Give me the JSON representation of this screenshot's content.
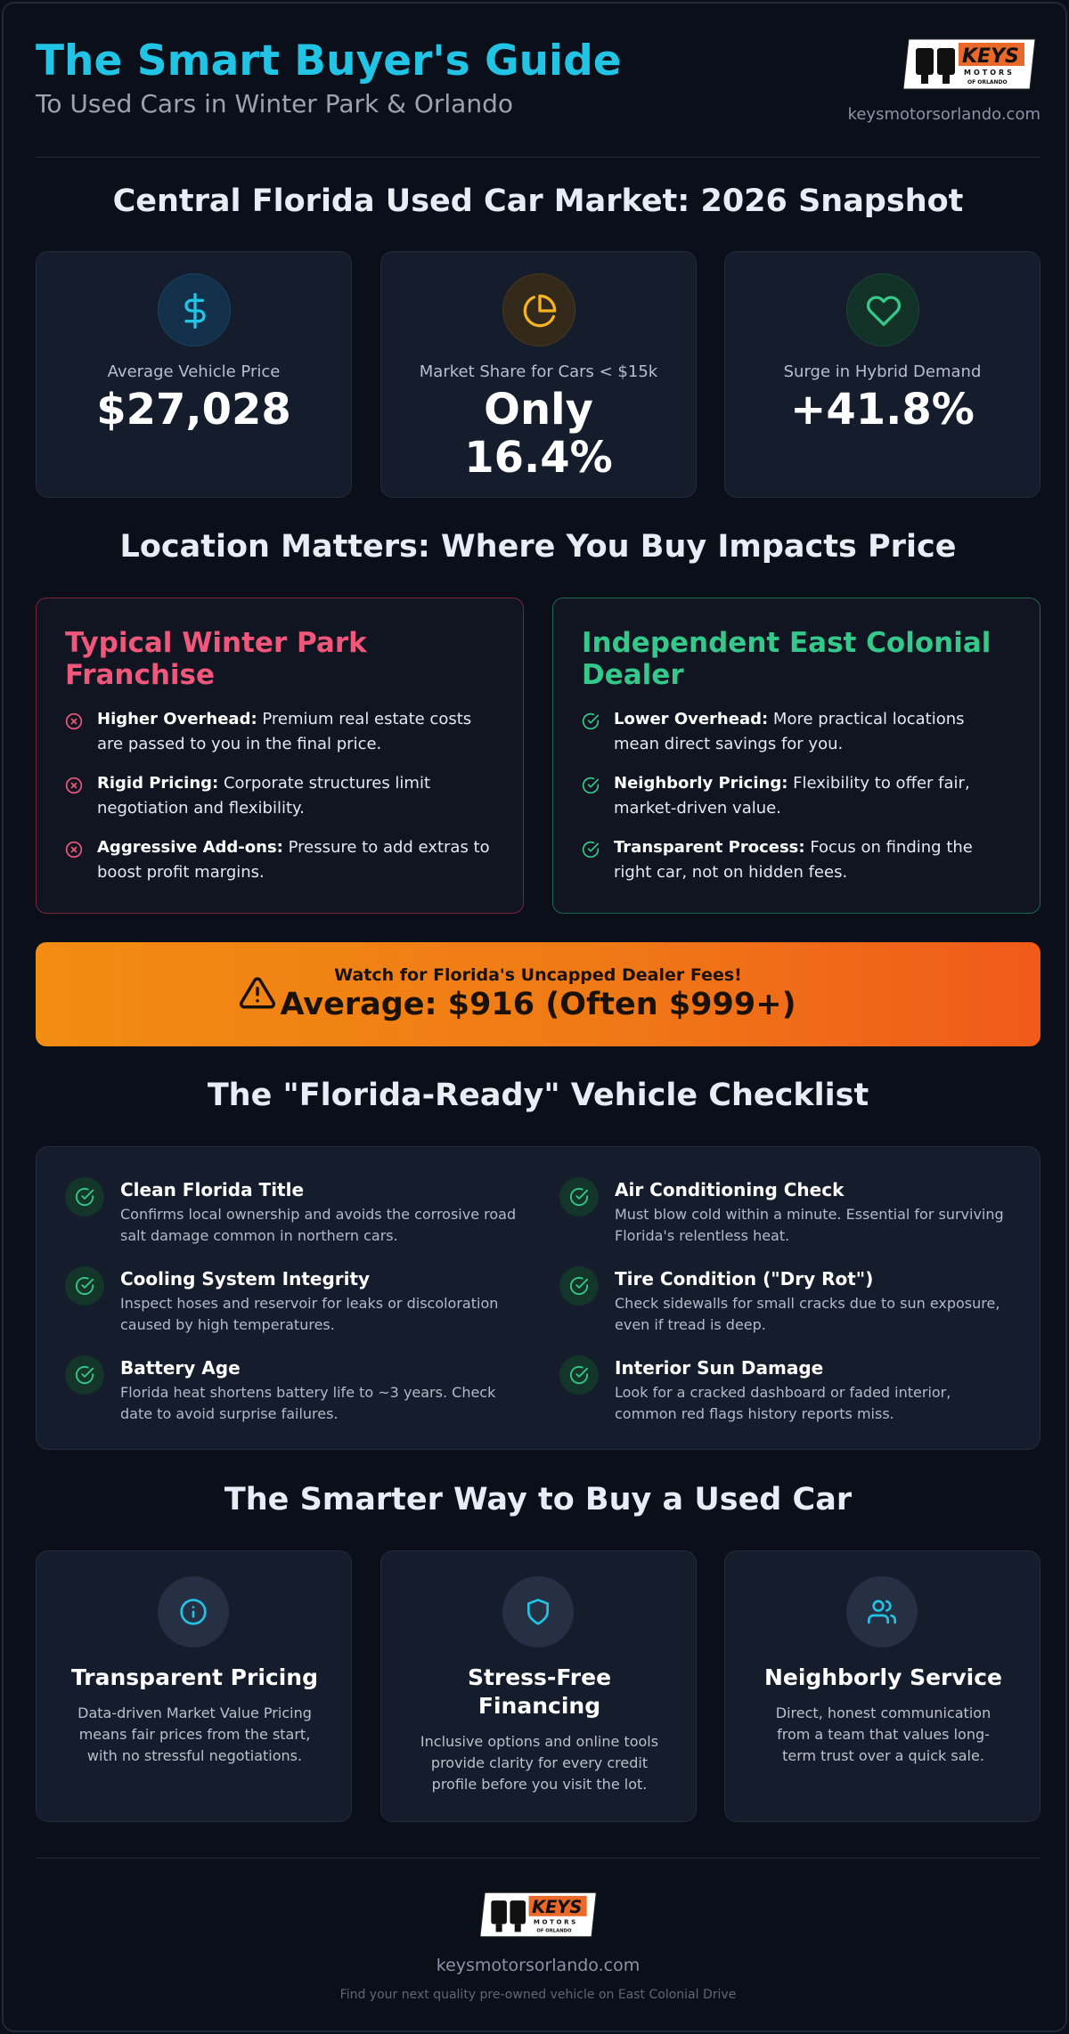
{
  "header": {
    "title": "The Smart Buyer's Guide",
    "subtitle": "To Used Cars in Winter Park & Orlando",
    "url": "keysmotorsorlando.com",
    "logo_text": "KEYS",
    "logo_subtext": "MOTORS",
    "logo_tagline": "OF ORLANDO"
  },
  "market": {
    "title": "Central Florida Used Car Market: 2026 Snapshot",
    "stats": [
      {
        "icon": "dollar-icon",
        "label": "Average Vehicle Price",
        "value": "$27,028",
        "value_line2": ""
      },
      {
        "icon": "pie-chart-icon",
        "label": "Market Share for Cars < $15k",
        "value": "Only",
        "value_line2": "16.4%"
      },
      {
        "icon": "heart-icon",
        "label": "Surge in Hybrid Demand",
        "value": "+41.8%",
        "value_line2": ""
      }
    ]
  },
  "location": {
    "title": "Location Matters: Where You Buy Impacts Price",
    "franchise": {
      "title": "Typical Winter Park Franchise",
      "items": [
        {
          "bold": "Higher Overhead:",
          "text": " Premium real estate costs are passed to you in the final price."
        },
        {
          "bold": "Rigid Pricing:",
          "text": " Corporate structures limit negotiation and flexibility."
        },
        {
          "bold": "Aggressive Add-ons:",
          "text": " Pressure to add extras to boost profit margins."
        }
      ]
    },
    "independent": {
      "title": "Independent East Colonial Dealer",
      "items": [
        {
          "bold": "Lower Overhead:",
          "text": " More practical locations mean direct savings for you."
        },
        {
          "bold": "Neighborly Pricing:",
          "text": " Flexibility to offer fair, market-driven value."
        },
        {
          "bold": "Transparent Process:",
          "text": " Focus on finding the right car, not on hidden fees."
        }
      ]
    }
  },
  "alert": {
    "warning": "Watch for Florida's Uncapped Dealer Fees!",
    "headline": "Average: $916 (Often $999+)"
  },
  "checklist": {
    "title": "The \"Florida-Ready\" Vehicle Checklist",
    "items": [
      {
        "title": "Clean Florida Title",
        "desc": "Confirms local ownership and avoids the corrosive road salt damage common in northern cars."
      },
      {
        "title": "Air Conditioning Check",
        "desc": "Must blow cold within a minute. Essential for surviving Florida's relentless heat."
      },
      {
        "title": "Cooling System Integrity",
        "desc": "Inspect hoses and reservoir for leaks or discoloration caused by high temperatures."
      },
      {
        "title": "Tire Condition (\"Dry Rot\")",
        "desc": "Check sidewalls for small cracks due to sun exposure, even if tread is deep."
      },
      {
        "title": "Battery Age",
        "desc": "Florida heat shortens battery life to ~3 years. Check date to avoid surprise failures."
      },
      {
        "title": "Interior Sun Damage",
        "desc": "Look for a cracked dashboard or faded interior, common red flags history reports miss."
      }
    ]
  },
  "benefits": {
    "title": "The Smarter Way to Buy a Used Car",
    "cards": [
      {
        "icon": "info-icon",
        "title": "Transparent Pricing",
        "desc": "Data-driven Market Value Pricing means fair prices from the start, with no stressful negotiations."
      },
      {
        "icon": "shield-icon",
        "title": "Stress-Free Financing",
        "desc": "Inclusive options and online tools provide clarity for every credit profile before you visit the lot."
      },
      {
        "icon": "users-icon",
        "title": "Neighborly Service",
        "desc": "Direct, honest communication from a team that values long-term trust over a quick sale."
      }
    ]
  },
  "footer": {
    "url": "keysmotorsorlando.com",
    "tagline": "Find your next quality pre-owned vehicle on East Colonial Drive"
  },
  "colors": {
    "accent": "#22c4e6",
    "danger": "#f0577a",
    "success": "#34c98a",
    "warning_gradient_start": "#f28c12",
    "warning_gradient_end": "#f05a1a",
    "background": "#0b0f19"
  }
}
